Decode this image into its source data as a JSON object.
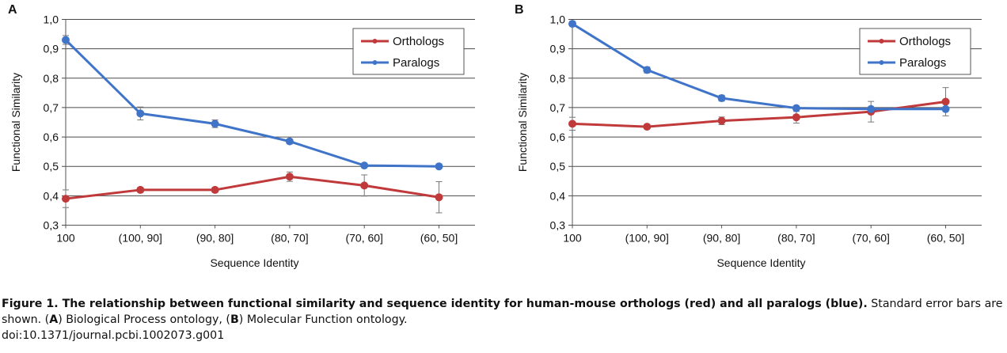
{
  "figure": {
    "caption": {
      "title": "Figure 1. The relationship between functional similarity and sequence identity for human-mouse orthologs (red) and all paralogs (blue).",
      "text_1": " Standard error bars are shown. (",
      "letter_a": "A",
      "text_2": ") Biological Process ontology, (",
      "letter_b": "B",
      "text_3": ") Molecular Function ontology.",
      "doi": "doi:10.1371/journal.pcbi.1002073.g001"
    },
    "colors": {
      "orthologs": "#c0393b",
      "paralogs": "#3f74c9",
      "grid": "#4a4a4a",
      "axis": "#555555"
    }
  },
  "chart_data": [
    {
      "panel_label": "A",
      "type": "line",
      "xlabel": "Sequence Identity",
      "ylabel": "Functional Similarity",
      "categories": [
        "100",
        "(100, 90]",
        "(90, 80]",
        "(80, 70]",
        "(70, 60]",
        "(60, 50]"
      ],
      "ylim": [
        0.3,
        1.0
      ],
      "yticks": [
        "0,3",
        "0,4",
        "0,5",
        "0,6",
        "0,7",
        "0,8",
        "0,9",
        "1,0"
      ],
      "grid": true,
      "legend_position": "top-right",
      "series": [
        {
          "name": "Orthologs",
          "color": "#c0393b",
          "values": [
            0.39,
            0.42,
            0.42,
            0.465,
            0.435,
            0.395
          ],
          "errors": [
            0.03,
            0.008,
            0.008,
            0.016,
            0.036,
            0.053
          ]
        },
        {
          "name": "Paralogs",
          "color": "#3f74c9",
          "values": [
            0.93,
            0.68,
            0.645,
            0.585,
            0.503,
            0.5
          ],
          "errors": [
            0.015,
            0.022,
            0.013,
            0.008,
            0.005,
            0.004
          ]
        }
      ]
    },
    {
      "panel_label": "B",
      "type": "line",
      "xlabel": "Sequence Identity",
      "ylabel": "Functional Similarity",
      "categories": [
        "100",
        "(100, 90]",
        "(90, 80]",
        "(80, 70]",
        "(70, 60]",
        "(60, 50]"
      ],
      "ylim": [
        0.3,
        1.0
      ],
      "yticks": [
        "0,3",
        "0,4",
        "0,5",
        "0,6",
        "0,7",
        "0,8",
        "0,9",
        "1,0"
      ],
      "grid": true,
      "legend_position": "top-right",
      "series": [
        {
          "name": "Orthologs",
          "color": "#c0393b",
          "values": [
            0.645,
            0.635,
            0.655,
            0.667,
            0.686,
            0.72
          ],
          "errors": [
            0.022,
            0.006,
            0.013,
            0.02,
            0.035,
            0.048
          ]
        },
        {
          "name": "Paralogs",
          "color": "#3f74c9",
          "values": [
            0.985,
            0.828,
            0.732,
            0.698,
            0.695,
            0.695
          ],
          "errors": [
            0.008,
            0.01,
            0.01,
            0.006,
            0.005,
            0.004
          ]
        }
      ]
    }
  ]
}
